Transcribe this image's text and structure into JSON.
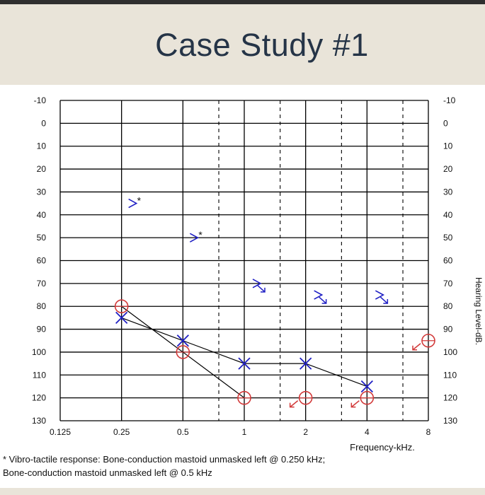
{
  "slide": {
    "title": "Case Study #1"
  },
  "footnote": {
    "line1": "* Vibro-tactile response: Bone-conduction mastoid unmasked left  @ 0.250 kHz;",
    "line2": "Bone-conduction mastoid unmasked left  @ 0.5 kHz"
  },
  "colors": {
    "left_ear": "#1f1fc4",
    "right_ear": "#d23a3a",
    "grid": "#000000",
    "title_band": "#e9e4d9",
    "title_text": "#253447"
  },
  "chart_data": {
    "type": "scatter",
    "title": "",
    "xlabel": "Frequency-kHz.",
    "ylabel": "Hearing Level-dB.",
    "x_scale": "log2",
    "x_ticks": [
      "0.125",
      "0.25",
      "0.5",
      "1",
      "2",
      "4",
      "8"
    ],
    "x_tick_values": [
      0.125,
      0.25,
      0.5,
      1,
      2,
      4,
      8
    ],
    "x_interoctave_dashed": [
      0.75,
      1.5,
      3,
      6
    ],
    "y_inverted": true,
    "ylim": [
      -10,
      130
    ],
    "y_ticks": [
      "-10",
      "0",
      "10",
      "20",
      "30",
      "40",
      "50",
      "60",
      "70",
      "80",
      "90",
      "100",
      "110",
      "120",
      "130"
    ],
    "grid": true,
    "series": [
      {
        "ear": "left",
        "symbol": "X",
        "connected": true,
        "points": [
          {
            "x": 0.25,
            "y": 85
          },
          {
            "x": 0.5,
            "y": 95
          },
          {
            "x": 1,
            "y": 105
          },
          {
            "x": 2,
            "y": 105
          },
          {
            "x": 4,
            "y": 115
          }
        ]
      },
      {
        "ear": "right",
        "symbol": "O",
        "connected": true,
        "points": [
          {
            "x": 0.25,
            "y": 80
          },
          {
            "x": 0.5,
            "y": 100
          },
          {
            "x": 1,
            "y": 120
          }
        ]
      },
      {
        "ear": "right",
        "symbol": "O-no-response",
        "connected": false,
        "points": [
          {
            "x": 2,
            "y": 120
          },
          {
            "x": 4,
            "y": 120
          },
          {
            "x": 8,
            "y": 95
          }
        ]
      },
      {
        "ear": "left",
        "symbol": ">",
        "vibrotactile": true,
        "points": [
          {
            "x": 0.25,
            "y": 35
          },
          {
            "x": 0.5,
            "y": 50
          }
        ]
      },
      {
        "ear": "left",
        "symbol": ">-no-response",
        "points": [
          {
            "x": 1,
            "y": 70
          },
          {
            "x": 2,
            "y": 75
          },
          {
            "x": 4,
            "y": 75
          }
        ]
      }
    ]
  }
}
